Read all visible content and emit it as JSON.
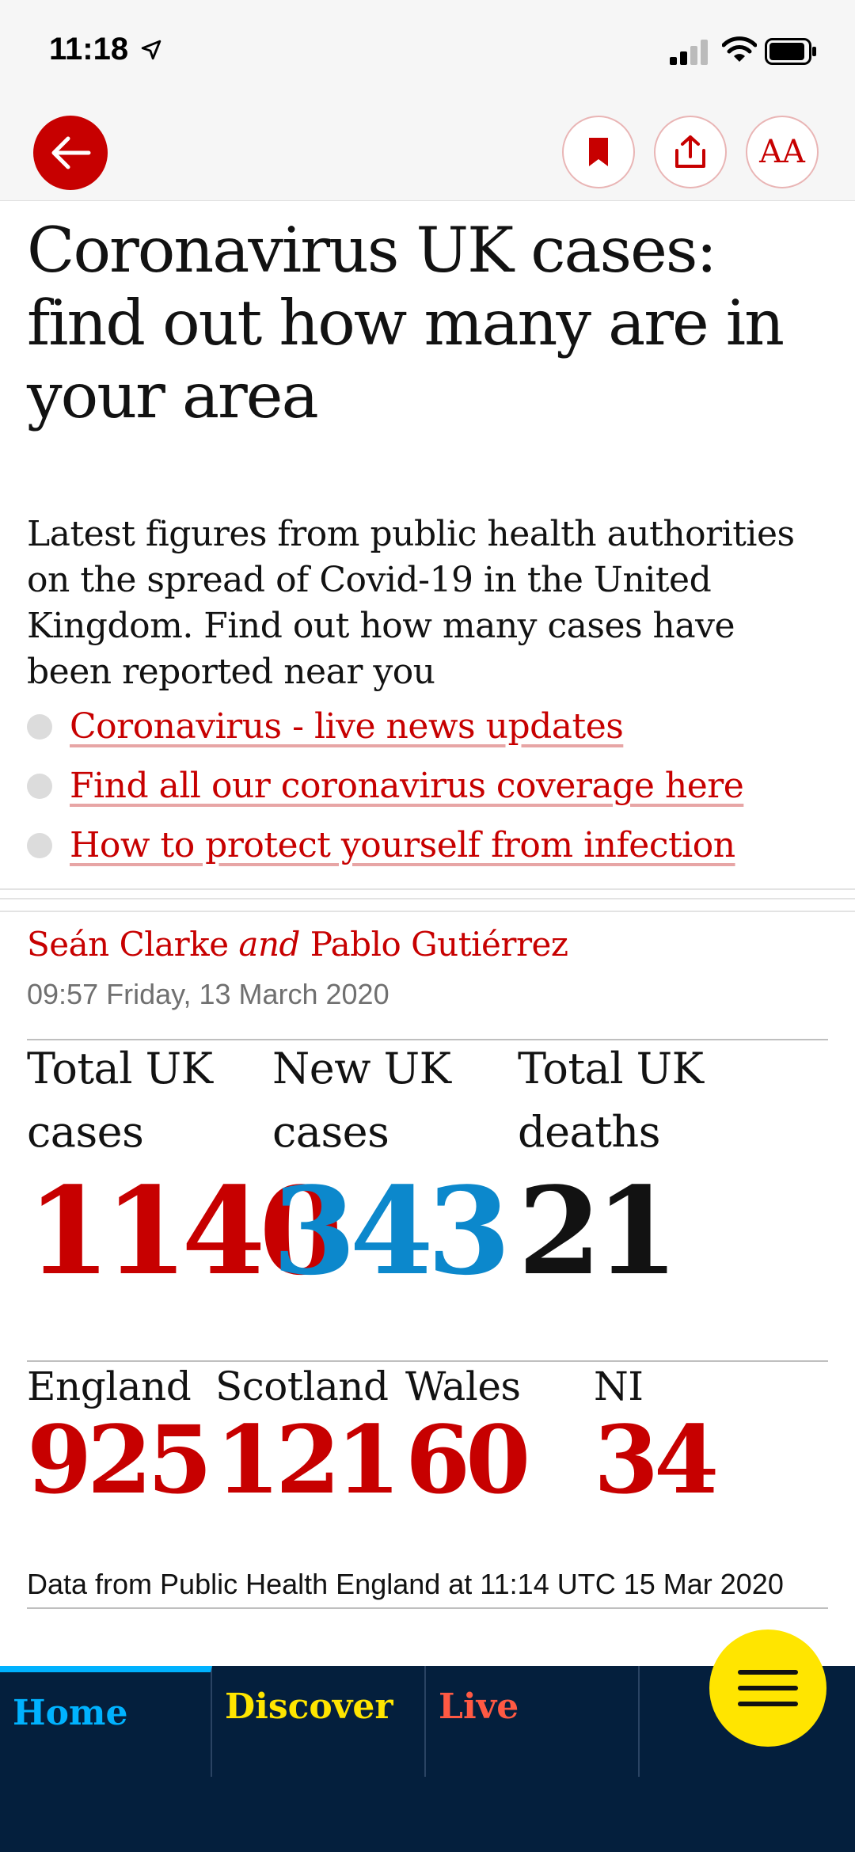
{
  "status_bar": {
    "time": "11:18"
  },
  "toolbar": {
    "text_size_label": "AA"
  },
  "article": {
    "headline": "Coronavirus UK cases: find out how many are in your area",
    "standfirst": "Latest figures from public health authorities on the spread of Covid-19 in the United Kingdom. Find out how many cases have been reported near you",
    "links": [
      "Coronavirus - live news updates",
      "Find all our coronavirus coverage here",
      "How to protect yourself from infection"
    ],
    "byline": {
      "author1": "Seán Clarke",
      "conjunction": "and",
      "author2": "Pablo Gutiérrez"
    },
    "dateline": "09:57 Friday, 13 March 2020"
  },
  "stats": {
    "total_cases": {
      "label": "Total UK cases",
      "value": "1140",
      "color": "#c70000"
    },
    "new_cases": {
      "label": "New UK cases",
      "value": "343",
      "color": "#0c88cc"
    },
    "total_deaths": {
      "label": "Total UK deaths",
      "value": "21",
      "color": "#121212"
    }
  },
  "nations": [
    {
      "label": "England",
      "value": "925"
    },
    {
      "label": "Scotland",
      "value": "121"
    },
    {
      "label": "Wales",
      "value": "60"
    },
    {
      "label": "NI",
      "value": "34"
    }
  ],
  "source_note": "Data from Public Health England at 11:14 UTC 15 Mar 2020",
  "bottom_nav": {
    "tabs": [
      {
        "label": "Home",
        "color": "#00b2ff"
      },
      {
        "label": "Discover",
        "color": "#ffe500"
      },
      {
        "label": "Live",
        "color": "#ff5943"
      }
    ],
    "background": "#041f3d"
  },
  "icons": [
    "location-arrow-icon",
    "signal-icon",
    "wifi-icon",
    "battery-icon",
    "back-arrow-icon",
    "bookmark-icon",
    "share-icon",
    "text-size-icon",
    "menu-icon"
  ]
}
